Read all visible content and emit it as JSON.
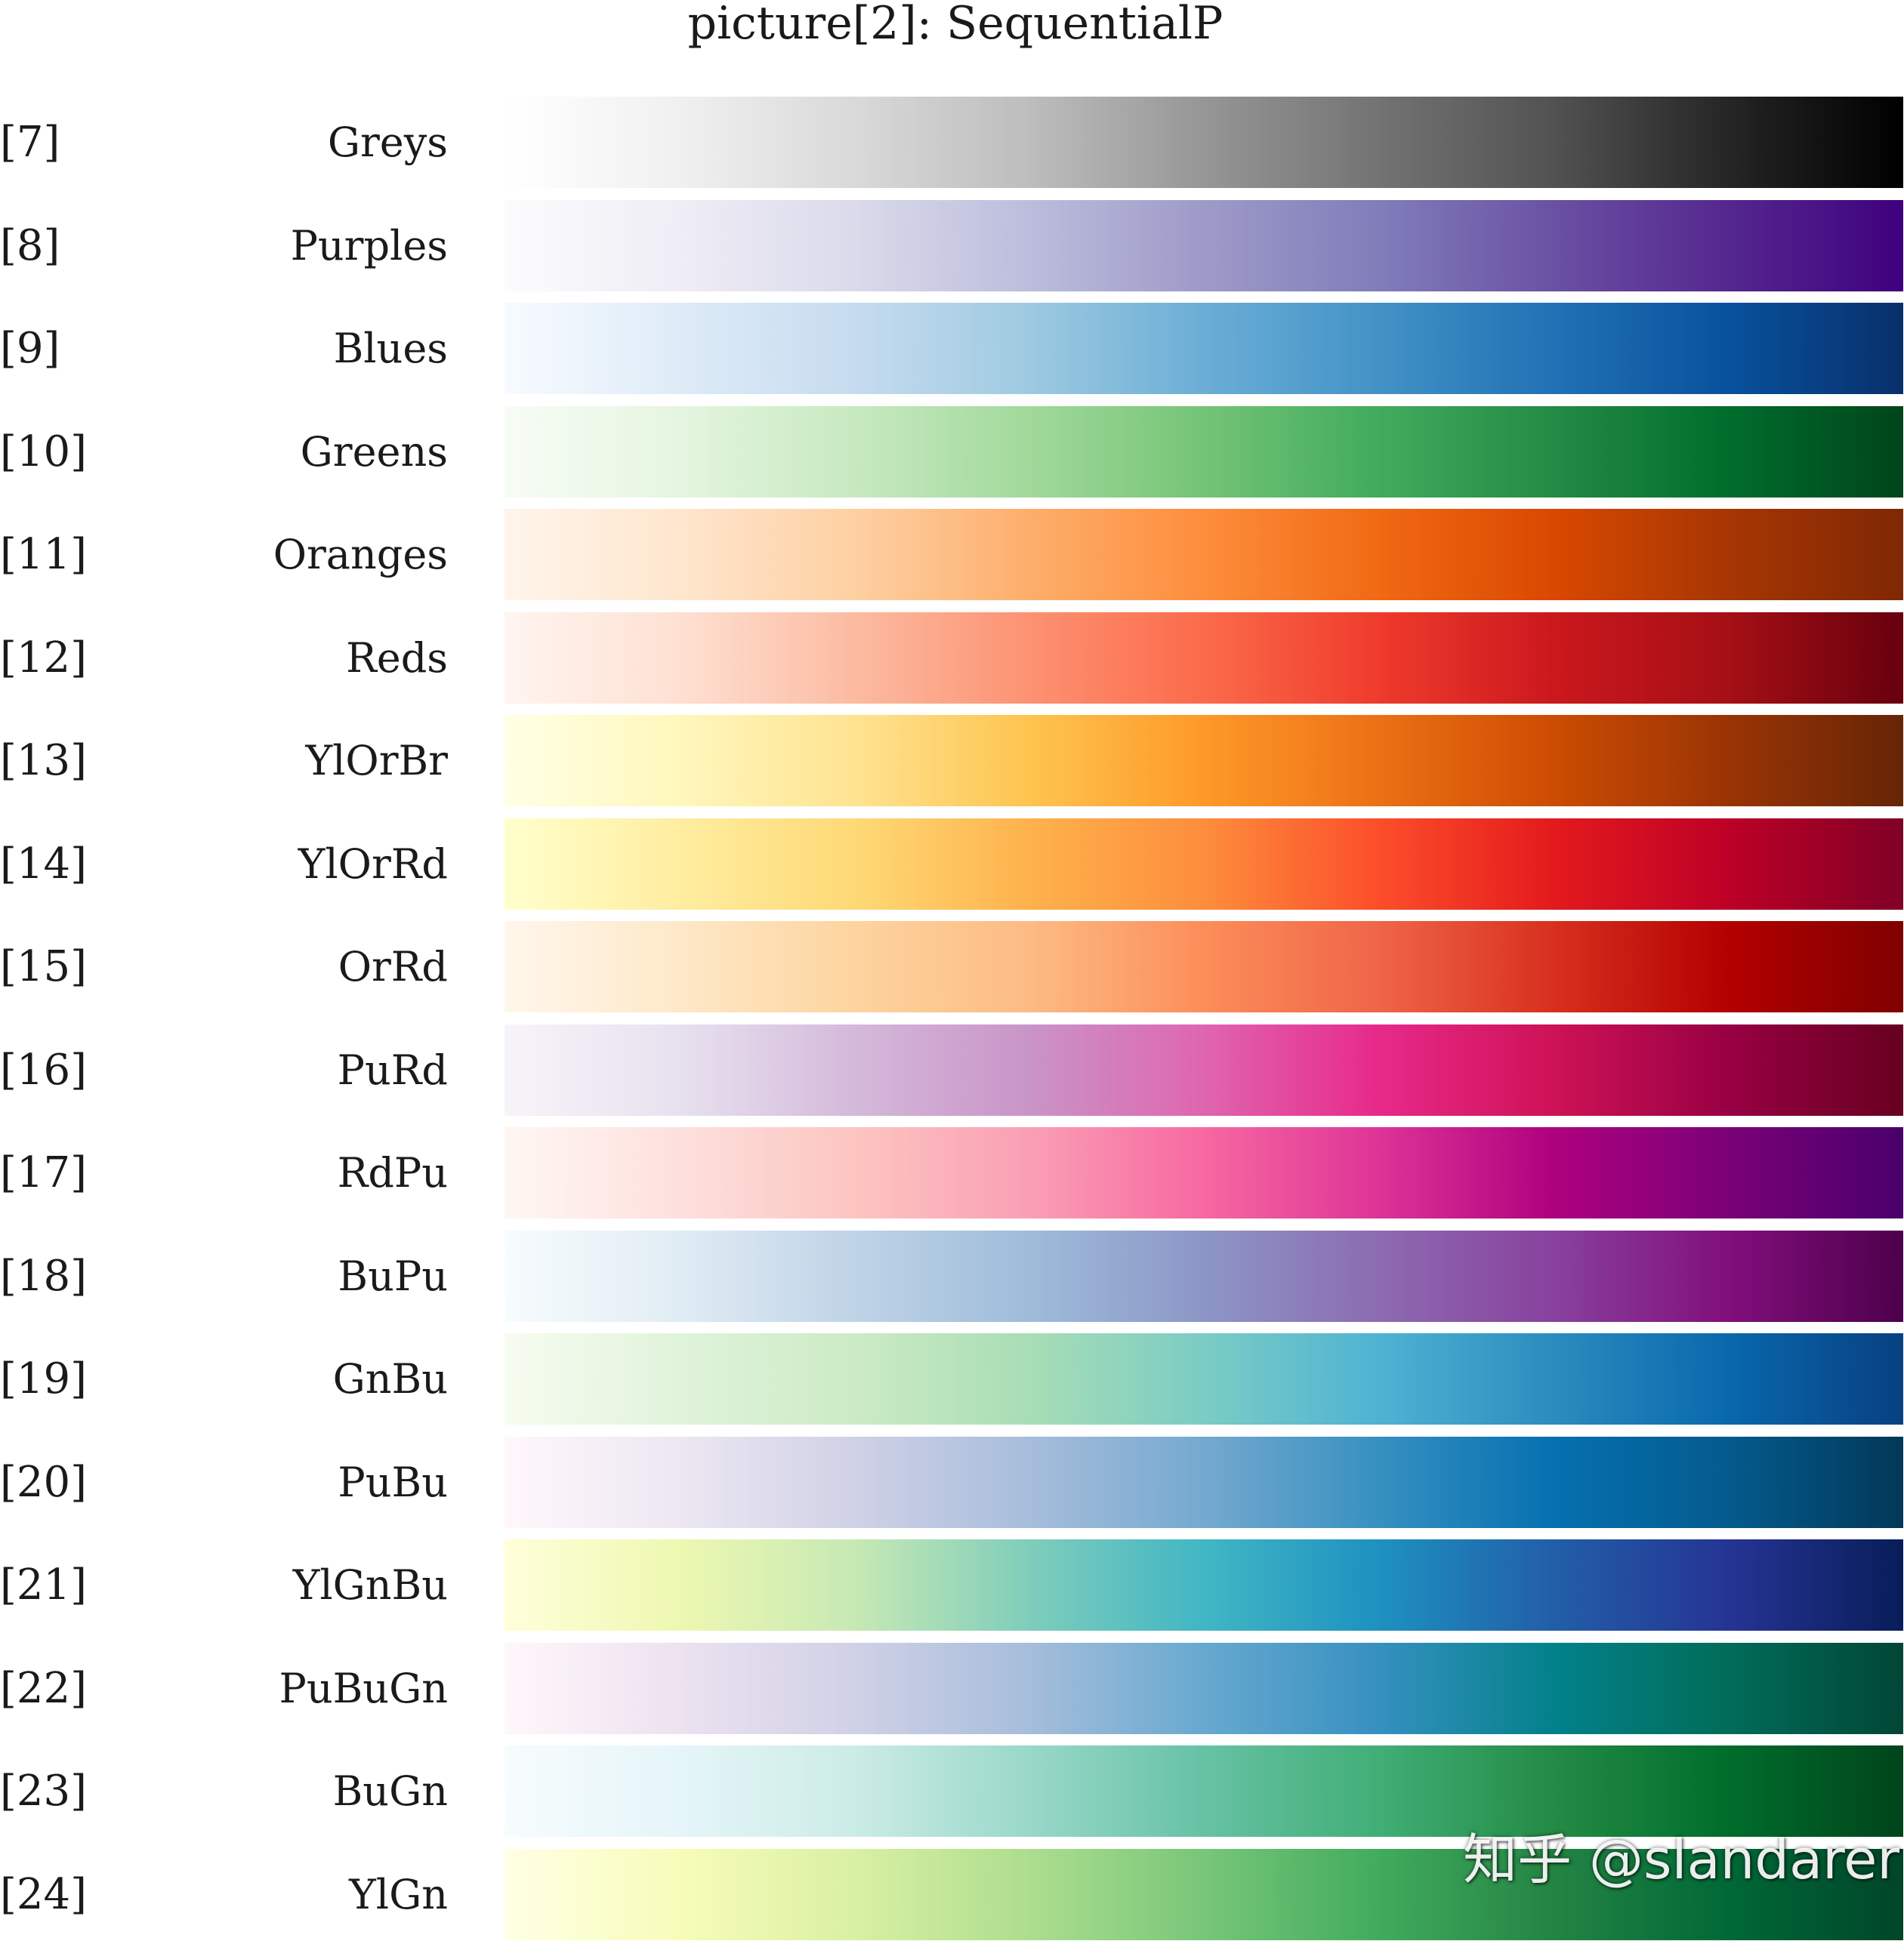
{
  "title": "picture[2]:  SequentialP",
  "watermark": "知乎 @slandarer",
  "chart_data": {
    "type": "heatmap",
    "colormaps": [
      {
        "index": "[7]",
        "name": "Greys",
        "colors": [
          "#ffffff",
          "#f0f0f0",
          "#d9d9d9",
          "#bdbdbd",
          "#969696",
          "#737373",
          "#525252",
          "#252525",
          "#000000"
        ]
      },
      {
        "index": "[8]",
        "name": "Purples",
        "colors": [
          "#fcfbfd",
          "#efedf5",
          "#dadaeb",
          "#bcbddc",
          "#9e9ac8",
          "#807dba",
          "#6a51a3",
          "#54278f",
          "#3f007d"
        ]
      },
      {
        "index": "[9]",
        "name": "Blues",
        "colors": [
          "#f7fbff",
          "#deebf7",
          "#c6dbef",
          "#9ecae1",
          "#6baed6",
          "#4292c6",
          "#2171b5",
          "#08519c",
          "#08306b"
        ]
      },
      {
        "index": "[10]",
        "name": "Greens",
        "colors": [
          "#f7fcf5",
          "#e5f5e0",
          "#c7e9c0",
          "#a1d99b",
          "#74c476",
          "#41ab5d",
          "#238b45",
          "#006d2c",
          "#00441b"
        ]
      },
      {
        "index": "[11]",
        "name": "Oranges",
        "colors": [
          "#fff5eb",
          "#fee6ce",
          "#fdd0a2",
          "#fdae6b",
          "#fd8d3c",
          "#f16913",
          "#d94801",
          "#a63603",
          "#7f2704"
        ]
      },
      {
        "index": "[12]",
        "name": "Reds",
        "colors": [
          "#fff5f0",
          "#fee0d2",
          "#fcbba1",
          "#fc9272",
          "#fb6a4a",
          "#ef3b2c",
          "#cb181d",
          "#a50f15",
          "#67000d"
        ]
      },
      {
        "index": "[13]",
        "name": "YlOrBr",
        "colors": [
          "#ffffe5",
          "#fff7bc",
          "#fee391",
          "#fec44f",
          "#fe9929",
          "#ec7014",
          "#cc4c02",
          "#993404",
          "#662506"
        ]
      },
      {
        "index": "[14]",
        "name": "YlOrRd",
        "colors": [
          "#ffffcc",
          "#ffeda0",
          "#fed976",
          "#feb24c",
          "#fd8d3c",
          "#fc4e2a",
          "#e31a1c",
          "#bd0026",
          "#800026"
        ]
      },
      {
        "index": "[15]",
        "name": "OrRd",
        "colors": [
          "#fff7ec",
          "#fee8c8",
          "#fdd49e",
          "#fdbb84",
          "#fc8d59",
          "#ef6548",
          "#d7301f",
          "#b30000",
          "#7f0000"
        ]
      },
      {
        "index": "[16]",
        "name": "PuRd",
        "colors": [
          "#f7f4f9",
          "#e7e1ef",
          "#d4b9da",
          "#c994c7",
          "#df65b0",
          "#e7298a",
          "#ce1256",
          "#980043",
          "#67001f"
        ]
      },
      {
        "index": "[17]",
        "name": "RdPu",
        "colors": [
          "#fff7f3",
          "#fde0dd",
          "#fcc5c0",
          "#fa9fb5",
          "#f768a1",
          "#dd3497",
          "#ae017e",
          "#7a0177",
          "#49006a"
        ]
      },
      {
        "index": "[18]",
        "name": "BuPu",
        "colors": [
          "#f7fcfd",
          "#e0ecf4",
          "#bfd3e6",
          "#9ebcda",
          "#8c96c6",
          "#8c6bb1",
          "#88419d",
          "#810f7c",
          "#4d004b"
        ]
      },
      {
        "index": "[19]",
        "name": "GnBu",
        "colors": [
          "#f7fcf0",
          "#e0f3db",
          "#ccebc5",
          "#a8ddb5",
          "#7bccc4",
          "#4eb3d3",
          "#2b8cbe",
          "#0868ac",
          "#084081"
        ]
      },
      {
        "index": "[20]",
        "name": "PuBu",
        "colors": [
          "#fff7fb",
          "#ece7f2",
          "#d0d1e6",
          "#a6bddb",
          "#74a9cf",
          "#3690c0",
          "#0570b0",
          "#045a8d",
          "#023858"
        ]
      },
      {
        "index": "[21]",
        "name": "YlGnBu",
        "colors": [
          "#ffffd9",
          "#edf8b1",
          "#c7e9b4",
          "#7fcdbb",
          "#41b6c4",
          "#1d91c0",
          "#225ea8",
          "#253494",
          "#081d58"
        ]
      },
      {
        "index": "[22]",
        "name": "PuBuGn",
        "colors": [
          "#fff7fb",
          "#ece2f0",
          "#d0d1e6",
          "#a6bddb",
          "#67a9cf",
          "#3690c0",
          "#02818a",
          "#016c59",
          "#014636"
        ]
      },
      {
        "index": "[23]",
        "name": "BuGn",
        "colors": [
          "#f7fcfd",
          "#e5f5f9",
          "#ccece6",
          "#99d8c9",
          "#66c2a4",
          "#41ae76",
          "#238b45",
          "#006d2c",
          "#00441b"
        ]
      },
      {
        "index": "[24]",
        "name": "YlGn",
        "colors": [
          "#ffffe5",
          "#f7fcb9",
          "#d9f0a3",
          "#addd8e",
          "#78c679",
          "#41ab5d",
          "#238443",
          "#006837",
          "#004529"
        ]
      }
    ]
  }
}
